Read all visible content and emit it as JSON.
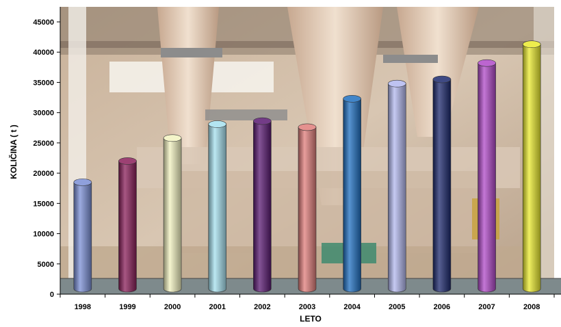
{
  "chart_data": {
    "type": "bar",
    "style": "3d-cylinder",
    "title": "",
    "xlabel": "LETO",
    "ylabel": "KOLIČINA ( t )",
    "categories": [
      "1998",
      "1999",
      "2000",
      "2001",
      "2002",
      "2003",
      "2004",
      "2005",
      "2006",
      "2007",
      "2008"
    ],
    "values": [
      18500,
      22000,
      25800,
      28100,
      28600,
      27600,
      32300,
      34800,
      35500,
      38200,
      41300
    ],
    "ylim": [
      0,
      45000
    ],
    "yticks": [
      0,
      5000,
      10000,
      15000,
      20000,
      25000,
      30000,
      35000,
      40000,
      45000
    ],
    "colors": [
      "#7b8fd6",
      "#8a1f5a",
      "#f2f2bf",
      "#a6e0ee",
      "#5a1a72",
      "#e07e7b",
      "#1f6fc0",
      "#b3b8ee",
      "#1d2a6e",
      "#b04ac8",
      "#eaea2e"
    ],
    "grid": false,
    "legend": "none",
    "background": "photograph of industrial silos"
  }
}
